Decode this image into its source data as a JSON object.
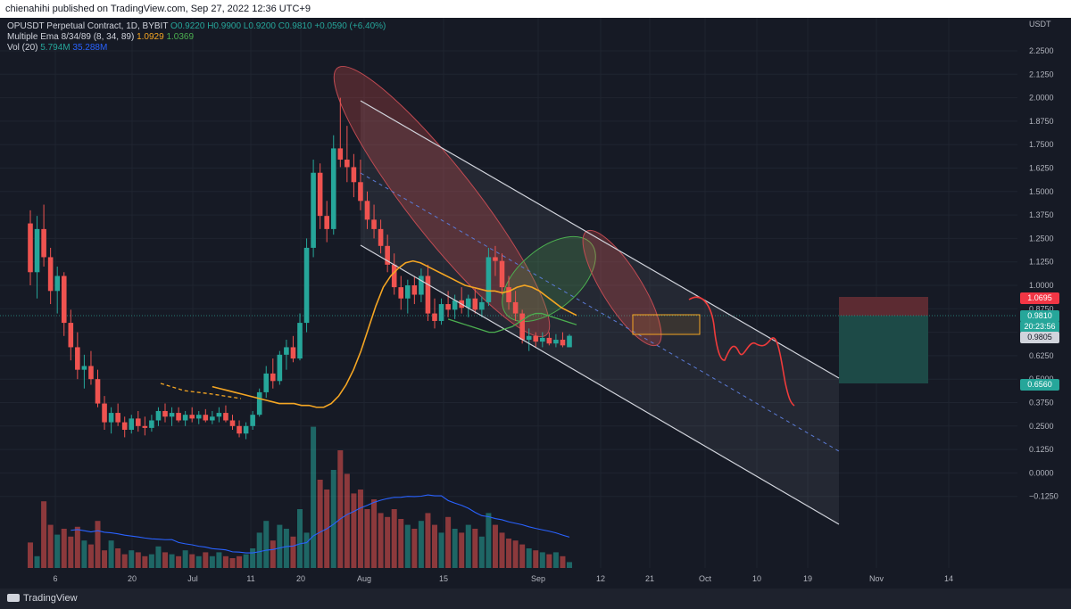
{
  "header": {
    "published_text": "chienahihi published on TradingView.com, Sep 27, 2022 12:36 UTC+9"
  },
  "legend": {
    "symbol_line_prefix": "OPUSDT Perpetual Contract, 1D, BYBIT",
    "open": "O0.9220",
    "high": "H0.9900",
    "low": "L0.9200",
    "close": "C0.9810",
    "change": "+0.0590 (+6.40%)",
    "ema_label": "Multiple Ema 8/34/89 (8, 34, 89)",
    "ema1_value": "1.0929",
    "ema2_value": "1.0369",
    "vol_label": "Vol (20)",
    "vol_value": "5.794M",
    "vol_ma_value": "35.288M"
  },
  "price_axis": {
    "currency": "USDT",
    "labels": [
      "2.2500",
      "2.1250",
      "2.0000",
      "1.8750",
      "1.7500",
      "1.6250",
      "1.5000",
      "1.3750",
      "1.2500",
      "1.1250",
      "1.0000",
      "0.8750",
      "0.7500",
      "0.6250",
      "0.5000",
      "0.3750",
      "0.2500",
      "0.1250",
      "0.0000",
      "−0.1250"
    ]
  },
  "price_tags": {
    "stop": "1.0695",
    "last": "0.9810",
    "countdown": "20:23:56",
    "entry": "0.9805",
    "target": "0.6560"
  },
  "time_axis": {
    "labels": [
      "6",
      "20",
      "Jul",
      "11",
      "20",
      "Aug",
      "15",
      "Sep",
      "12",
      "21",
      "Oct",
      "10",
      "19",
      "Nov",
      "14"
    ]
  },
  "brand": {
    "name": "TradingView"
  },
  "colors": {
    "bull": "#26a69a",
    "bear": "#ef5350",
    "ema_fast": "#f5a623",
    "ema_slow": "#4caf50",
    "vol_ma": "#2962ff",
    "channel": "#d1d4dc",
    "projection": "#ef3b3b",
    "stop_zone": "#5c2b32",
    "target_zone": "#1d4a47"
  },
  "chart_data": {
    "type": "candlestick",
    "symbol": "OPUSDT Perpetual Contract",
    "interval": "1D",
    "exchange": "BYBIT",
    "ylim": [
      -0.15,
      2.34
    ],
    "candles": [
      [
        1.58,
        1.65,
        1.25,
        1.32
      ],
      [
        1.32,
        1.62,
        1.18,
        1.55
      ],
      [
        1.55,
        1.68,
        1.35,
        1.4
      ],
      [
        1.4,
        1.45,
        1.15,
        1.22
      ],
      [
        1.22,
        1.35,
        1.1,
        1.3
      ],
      [
        1.3,
        1.32,
        0.98,
        1.05
      ],
      [
        1.05,
        1.12,
        0.85,
        0.92
      ],
      [
        0.92,
        1.0,
        0.75,
        0.8
      ],
      [
        0.8,
        0.88,
        0.7,
        0.82
      ],
      [
        0.82,
        0.9,
        0.72,
        0.75
      ],
      [
        0.75,
        0.8,
        0.6,
        0.62
      ],
      [
        0.62,
        0.66,
        0.48,
        0.52
      ],
      [
        0.52,
        0.6,
        0.46,
        0.57
      ],
      [
        0.57,
        0.62,
        0.5,
        0.52
      ],
      [
        0.52,
        0.55,
        0.44,
        0.48
      ],
      [
        0.48,
        0.56,
        0.46,
        0.54
      ],
      [
        0.54,
        0.58,
        0.47,
        0.5
      ],
      [
        0.5,
        0.55,
        0.45,
        0.49
      ],
      [
        0.49,
        0.56,
        0.47,
        0.53
      ],
      [
        0.53,
        0.6,
        0.5,
        0.58
      ],
      [
        0.58,
        0.62,
        0.52,
        0.55
      ],
      [
        0.55,
        0.6,
        0.5,
        0.57
      ],
      [
        0.57,
        0.6,
        0.52,
        0.53
      ],
      [
        0.53,
        0.58,
        0.5,
        0.56
      ],
      [
        0.56,
        0.6,
        0.52,
        0.54
      ],
      [
        0.54,
        0.58,
        0.51,
        0.56
      ],
      [
        0.56,
        0.59,
        0.52,
        0.53
      ],
      [
        0.53,
        0.58,
        0.51,
        0.55
      ],
      [
        0.55,
        0.6,
        0.52,
        0.57
      ],
      [
        0.57,
        0.61,
        0.52,
        0.53
      ],
      [
        0.53,
        0.56,
        0.48,
        0.5
      ],
      [
        0.5,
        0.53,
        0.44,
        0.46
      ],
      [
        0.46,
        0.52,
        0.43,
        0.5
      ],
      [
        0.5,
        0.58,
        0.48,
        0.56
      ],
      [
        0.56,
        0.7,
        0.55,
        0.68
      ],
      [
        0.68,
        0.82,
        0.65,
        0.78
      ],
      [
        0.78,
        0.86,
        0.7,
        0.74
      ],
      [
        0.74,
        0.9,
        0.72,
        0.88
      ],
      [
        0.88,
        0.96,
        0.8,
        0.92
      ],
      [
        0.92,
        0.98,
        0.84,
        0.86
      ],
      [
        0.86,
        1.1,
        0.85,
        1.05
      ],
      [
        1.05,
        1.5,
        1.0,
        1.45
      ],
      [
        1.45,
        1.92,
        1.4,
        1.85
      ],
      [
        1.85,
        1.9,
        1.55,
        1.62
      ],
      [
        1.62,
        1.7,
        1.48,
        1.55
      ],
      [
        1.55,
        2.05,
        1.52,
        1.98
      ],
      [
        1.98,
        2.25,
        1.88,
        1.92
      ],
      [
        1.92,
        2.1,
        1.8,
        1.88
      ],
      [
        1.88,
        1.95,
        1.72,
        1.8
      ],
      [
        1.8,
        1.92,
        1.65,
        1.7
      ],
      [
        1.7,
        1.75,
        1.55,
        1.6
      ],
      [
        1.6,
        1.68,
        1.5,
        1.55
      ],
      [
        1.55,
        1.6,
        1.42,
        1.46
      ],
      [
        1.46,
        1.52,
        1.32,
        1.36
      ],
      [
        1.36,
        1.42,
        1.2,
        1.24
      ],
      [
        1.24,
        1.3,
        1.12,
        1.18
      ],
      [
        1.18,
        1.28,
        1.1,
        1.25
      ],
      [
        1.25,
        1.3,
        1.15,
        1.2
      ],
      [
        1.2,
        1.34,
        1.16,
        1.3
      ],
      [
        1.3,
        1.36,
        1.06,
        1.1
      ],
      [
        1.1,
        1.18,
        1.02,
        1.06
      ],
      [
        1.06,
        1.18,
        1.04,
        1.15
      ],
      [
        1.15,
        1.22,
        1.08,
        1.12
      ],
      [
        1.12,
        1.2,
        1.07,
        1.17
      ],
      [
        1.17,
        1.24,
        1.1,
        1.13
      ],
      [
        1.13,
        1.2,
        1.08,
        1.18
      ],
      [
        1.18,
        1.23,
        1.1,
        1.12
      ],
      [
        1.12,
        1.19,
        1.08,
        1.16
      ],
      [
        1.16,
        1.45,
        1.14,
        1.4
      ],
      [
        1.4,
        1.46,
        1.3,
        1.38
      ],
      [
        1.38,
        1.42,
        1.2,
        1.24
      ],
      [
        1.24,
        1.3,
        1.12,
        1.16
      ],
      [
        1.16,
        1.22,
        1.06,
        1.1
      ],
      [
        1.1,
        1.12,
        0.94,
        0.96
      ],
      [
        0.96,
        1.02,
        0.9,
        0.98
      ],
      [
        0.98,
        1.0,
        0.92,
        0.95
      ],
      [
        0.95,
        1.0,
        0.92,
        0.97
      ],
      [
        0.97,
        1.0,
        0.93,
        0.94
      ],
      [
        0.94,
        0.99,
        0.92,
        0.96
      ],
      [
        0.96,
        1.0,
        0.92,
        0.93
      ],
      [
        0.92,
        0.99,
        0.92,
        0.981
      ]
    ],
    "volume": [
      13,
      6,
      34,
      22,
      17,
      20,
      16,
      21,
      14,
      12,
      24,
      9,
      14,
      10,
      7,
      9,
      8,
      6,
      7,
      11,
      8,
      7,
      6,
      9,
      7,
      6,
      8,
      6,
      8,
      6,
      5,
      6,
      7,
      10,
      18,
      24,
      14,
      22,
      20,
      16,
      30,
      18,
      72,
      45,
      40,
      50,
      60,
      48,
      38,
      40,
      30,
      35,
      28,
      26,
      30,
      25,
      22,
      20,
      24,
      28,
      22,
      18,
      26,
      20,
      18,
      22,
      20,
      16,
      28,
      22,
      18,
      15,
      14,
      12,
      10,
      9,
      8,
      7,
      8,
      6,
      3
    ],
    "volume_ma_hint": "Vol (20) moving average line",
    "ema_fast_values": [
      0.71,
      0.7,
      0.69,
      0.68,
      0.67,
      0.66,
      0.65,
      0.64,
      0.63,
      0.62,
      0.62,
      0.62,
      0.61,
      0.61,
      0.6,
      0.6,
      0.62,
      0.66,
      0.72,
      0.8,
      0.9,
      1.02,
      1.14,
      1.24,
      1.3,
      1.34,
      1.37,
      1.38,
      1.37,
      1.35,
      1.33,
      1.31,
      1.29,
      1.27,
      1.25,
      1.24,
      1.23,
      1.22,
      1.22,
      1.21,
      1.22,
      1.24,
      1.25,
      1.24,
      1.22,
      1.19,
      1.16,
      1.13,
      1.11,
      1.09
    ],
    "ema_slow_values": [
      1.07,
      1.06,
      1.05,
      1.04,
      1.03,
      1.02,
      1.01,
      1.0,
      1.0,
      1.01,
      1.02,
      1.03,
      1.05,
      1.07,
      1.09,
      1.1,
      1.1,
      1.09,
      1.08,
      1.07,
      1.06,
      1.05,
      1.04
    ],
    "trade": {
      "stop": 1.0695,
      "entry": 0.9805,
      "target": 0.656
    }
  }
}
